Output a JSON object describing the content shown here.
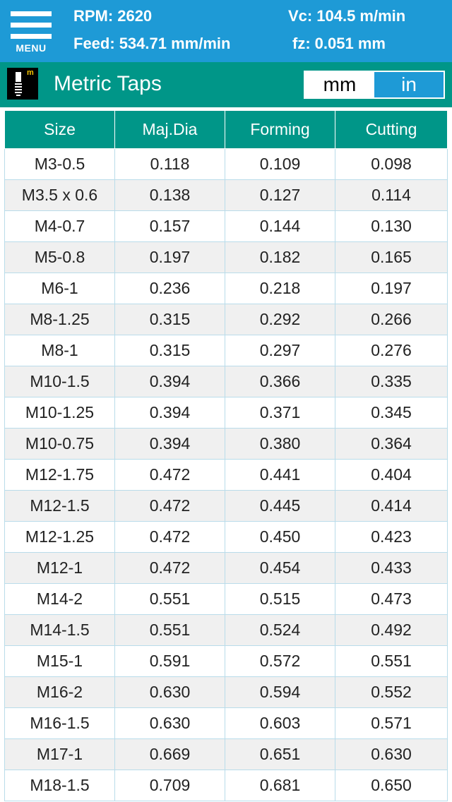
{
  "header": {
    "menu_label": "MENU",
    "rpm_label": "RPM:",
    "rpm_value": "2620",
    "feed_label": "Feed:",
    "feed_value": "534.71 mm/min",
    "vc_label": "Vc:",
    "vc_value": "104.5 m/min",
    "fz_label": "fz:",
    "fz_value": "0.051 mm"
  },
  "title_bar": {
    "icon": "metric-tap-icon",
    "icon_letter": "m",
    "title": "Metric Taps",
    "units": [
      "mm",
      "in"
    ],
    "selected_unit": "in"
  },
  "table": {
    "columns": [
      "Size",
      "Maj.Dia",
      "Forming",
      "Cutting"
    ],
    "rows": [
      [
        "M3-0.5",
        "0.118",
        "0.109",
        "0.098"
      ],
      [
        "M3.5 x 0.6",
        "0.138",
        "0.127",
        "0.114"
      ],
      [
        "M4-0.7",
        "0.157",
        "0.144",
        "0.130"
      ],
      [
        "M5-0.8",
        "0.197",
        "0.182",
        "0.165"
      ],
      [
        "M6-1",
        "0.236",
        "0.218",
        "0.197"
      ],
      [
        "M8-1.25",
        "0.315",
        "0.292",
        "0.266"
      ],
      [
        "M8-1",
        "0.315",
        "0.297",
        "0.276"
      ],
      [
        "M10-1.5",
        "0.394",
        "0.366",
        "0.335"
      ],
      [
        "M10-1.25",
        "0.394",
        "0.371",
        "0.345"
      ],
      [
        "M10-0.75",
        "0.394",
        "0.380",
        "0.364"
      ],
      [
        "M12-1.75",
        "0.472",
        "0.441",
        "0.404"
      ],
      [
        "M12-1.5",
        "0.472",
        "0.445",
        "0.414"
      ],
      [
        "M12-1.25",
        "0.472",
        "0.450",
        "0.423"
      ],
      [
        "M12-1",
        "0.472",
        "0.454",
        "0.433"
      ],
      [
        "M14-2",
        "0.551",
        "0.515",
        "0.473"
      ],
      [
        "M14-1.5",
        "0.551",
        "0.524",
        "0.492"
      ],
      [
        "M15-1",
        "0.591",
        "0.572",
        "0.551"
      ],
      [
        "M16-2",
        "0.630",
        "0.594",
        "0.552"
      ],
      [
        "M16-1.5",
        "0.630",
        "0.603",
        "0.571"
      ],
      [
        "M17-1",
        "0.669",
        "0.651",
        "0.630"
      ],
      [
        "M18-1.5",
        "0.709",
        "0.681",
        "0.650"
      ]
    ]
  },
  "colors": {
    "top_bar": "#1e9ad6",
    "title_bar": "#009688",
    "selected_unit": "#1e9ad6",
    "row_alt": "#f0f0f0",
    "cell_border": "#b9dcea"
  }
}
